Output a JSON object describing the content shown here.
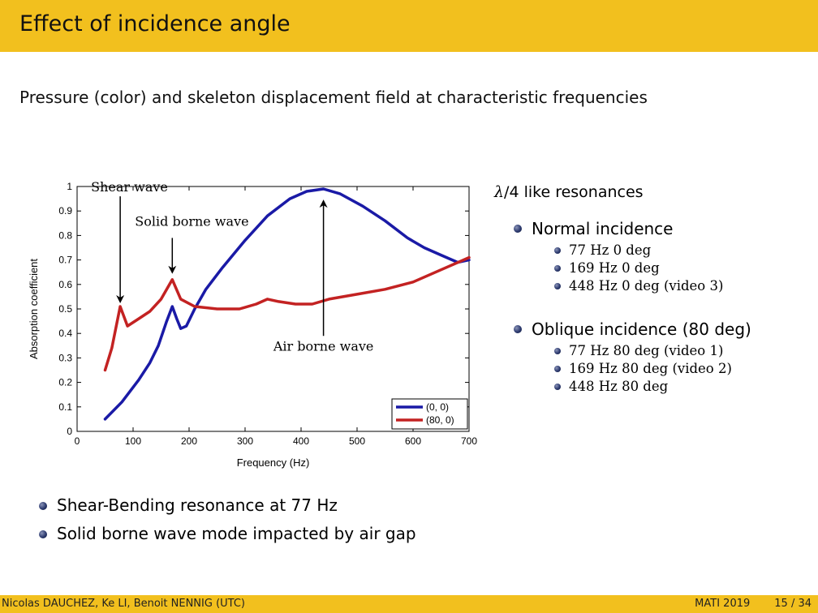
{
  "header": {
    "title": "Effect of incidence angle"
  },
  "subtitle": "Pressure (color) and skeleton displacement field at characteristic frequencies",
  "chart_data": {
    "type": "line",
    "xlabel": "Frequency (Hz)",
    "ylabel": "Absorption coefficient",
    "xlim": [
      0,
      700
    ],
    "ylim": [
      0,
      1
    ],
    "x_ticks": [
      "0",
      "100",
      "200",
      "300",
      "400",
      "500",
      "600",
      "700"
    ],
    "y_ticks": [
      "0",
      "0.1",
      "0.2",
      "0.3",
      "0.4",
      "0.5",
      "0.6",
      "0.7",
      "0.8",
      "0.9",
      "1"
    ],
    "legend_position": "bottom-right",
    "grid": false,
    "series": [
      {
        "name": "(0, 0)",
        "color": "#1a1aa6",
        "points": [
          [
            50,
            0.05
          ],
          [
            80,
            0.12
          ],
          [
            110,
            0.21
          ],
          [
            130,
            0.28
          ],
          [
            145,
            0.35
          ],
          [
            160,
            0.45
          ],
          [
            170,
            0.51
          ],
          [
            178,
            0.46
          ],
          [
            185,
            0.42
          ],
          [
            195,
            0.43
          ],
          [
            210,
            0.5
          ],
          [
            230,
            0.58
          ],
          [
            260,
            0.67
          ],
          [
            300,
            0.78
          ],
          [
            340,
            0.88
          ],
          [
            380,
            0.95
          ],
          [
            410,
            0.98
          ],
          [
            440,
            0.99
          ],
          [
            470,
            0.97
          ],
          [
            510,
            0.92
          ],
          [
            550,
            0.86
          ],
          [
            590,
            0.79
          ],
          [
            620,
            0.75
          ],
          [
            650,
            0.72
          ],
          [
            680,
            0.69
          ],
          [
            700,
            0.7
          ]
        ]
      },
      {
        "name": "(80, 0)",
        "color": "#c32222",
        "points": [
          [
            50,
            0.25
          ],
          [
            62,
            0.34
          ],
          [
            77,
            0.51
          ],
          [
            90,
            0.43
          ],
          [
            110,
            0.46
          ],
          [
            130,
            0.49
          ],
          [
            150,
            0.54
          ],
          [
            170,
            0.62
          ],
          [
            185,
            0.54
          ],
          [
            210,
            0.51
          ],
          [
            250,
            0.5
          ],
          [
            290,
            0.5
          ],
          [
            320,
            0.52
          ],
          [
            340,
            0.54
          ],
          [
            360,
            0.53
          ],
          [
            390,
            0.52
          ],
          [
            420,
            0.52
          ],
          [
            450,
            0.54
          ],
          [
            500,
            0.56
          ],
          [
            550,
            0.58
          ],
          [
            600,
            0.61
          ],
          [
            650,
            0.66
          ],
          [
            700,
            0.71
          ]
        ]
      }
    ],
    "annotations": [
      {
        "text": "Shear wave",
        "arrow_x": 77,
        "arrow_from_y": 0.96,
        "arrow_to_y": 0.53,
        "label_y": 1.0
      },
      {
        "text": "Solid borne wave",
        "arrow_x": 170,
        "arrow_from_y": 0.79,
        "arrow_to_y": 0.65,
        "label_y": 0.86
      },
      {
        "text": "Air borne wave",
        "arrow_x": 440,
        "arrow_from_y": 0.39,
        "arrow_to_y": 0.94,
        "label_y": 0.35
      }
    ]
  },
  "right_panel": {
    "heading_symbol": "λ",
    "heading_rest": "/4 like resonances",
    "groups": [
      {
        "title": "Normal incidence",
        "items": [
          "77 Hz 0 deg",
          "169 Hz 0 deg",
          "448 Hz 0 deg (video 3)"
        ]
      },
      {
        "title": "Oblique incidence (80 deg)",
        "items": [
          "77 Hz 80 deg (video 1)",
          "169 Hz 80 deg (video 2)",
          "448 Hz 80 deg"
        ]
      }
    ]
  },
  "bottom_bullets": [
    "Shear-Bending resonance at 77 Hz",
    "Solid borne wave mode impacted by air gap"
  ],
  "footer": {
    "authors": "Nicolas DAUCHEZ, Ke LI, Benoit NENNIG (UTC)",
    "conference": "MATI 2019",
    "page": "15 / 34"
  }
}
